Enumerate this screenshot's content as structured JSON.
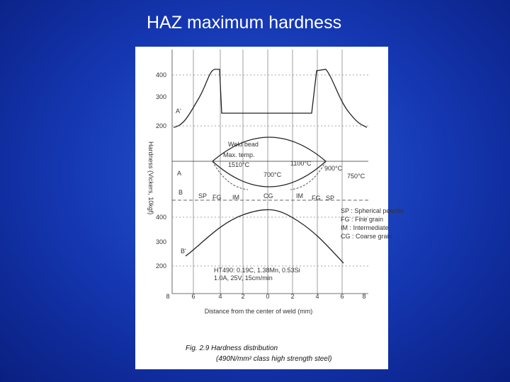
{
  "slide": {
    "title": "HAZ maximum hardness"
  },
  "figure": {
    "y_label": "Hardness (Vickers, 10kgf)",
    "upper_ticks": [
      "400",
      "300",
      "200"
    ],
    "lower_ticks": [
      "400",
      "300",
      "200"
    ],
    "x_ticks": [
      "8",
      "6",
      "4",
      "2",
      "0",
      "2",
      "4",
      "6",
      "8"
    ],
    "x_label": "Distance from the center of weld (mm)",
    "line_labels": [
      "A'",
      "A",
      "B",
      "B'"
    ],
    "weld": {
      "bead": "Weld bead",
      "max_temp": "Max. temp.",
      "temps": [
        "1510°C",
        "1100°C",
        "900°C",
        "750°C",
        "700°C"
      ]
    },
    "zones": [
      "SP",
      "FG",
      "IM",
      "CG",
      "IM",
      "FG",
      "SP"
    ],
    "legend": [
      "SP : Spherical pearlite",
      "FG : Fine grain",
      "IM : Intermediate",
      "CG : Coarse grain"
    ],
    "steel": [
      "HT490: 0.19C, 1.38Mn, 0.53Si",
      "1.0A, 25V, 15cm/min"
    ],
    "caption": [
      "Fig. 2.9 Hardness distribution",
      "(490N/mm² class high strength steel)"
    ]
  }
}
